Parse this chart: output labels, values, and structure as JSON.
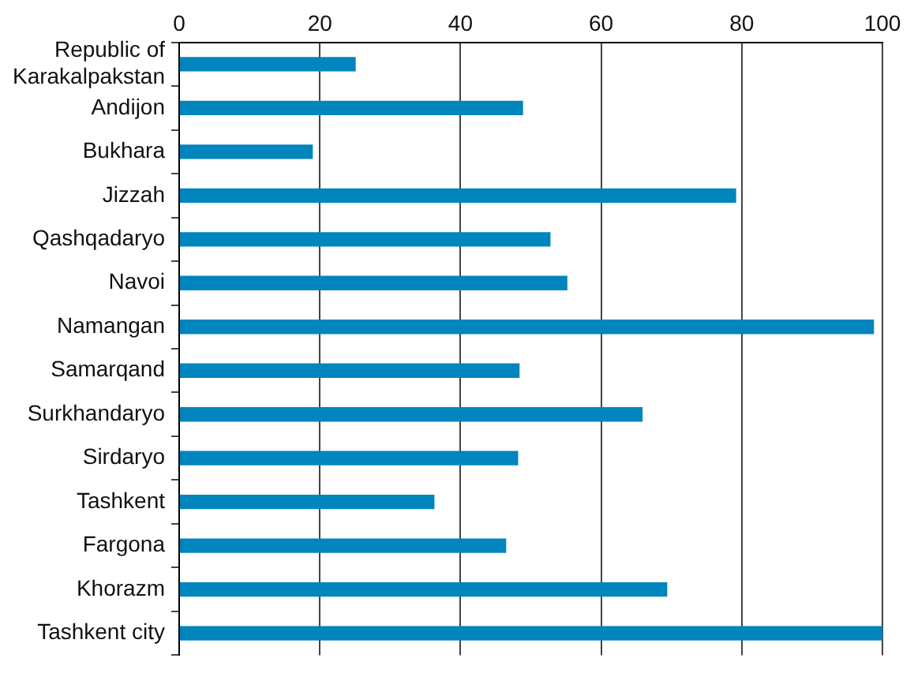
{
  "chart_data": {
    "type": "bar",
    "orientation": "horizontal",
    "categories": [
      "Republic of Karakalpakstan",
      "Andijon",
      "Bukhara",
      "Jizzah",
      "Qashqadaryo",
      "Navoi",
      "Namangan",
      "Samarqand",
      "Surkhandaryo",
      "Sirdaryo",
      "Tashkent",
      "Fargona",
      "Khorazm",
      "Tashkent city"
    ],
    "values": [
      25.1,
      48.9,
      19.0,
      79.2,
      52.8,
      55.2,
      98.8,
      48.4,
      65.9,
      48.2,
      36.3,
      46.5,
      69.4,
      100
    ],
    "color": "#0085bd",
    "xlim": [
      0,
      100
    ],
    "xticks": [
      0,
      20,
      40,
      60,
      80,
      100
    ],
    "grid": "x",
    "legend": false
  }
}
